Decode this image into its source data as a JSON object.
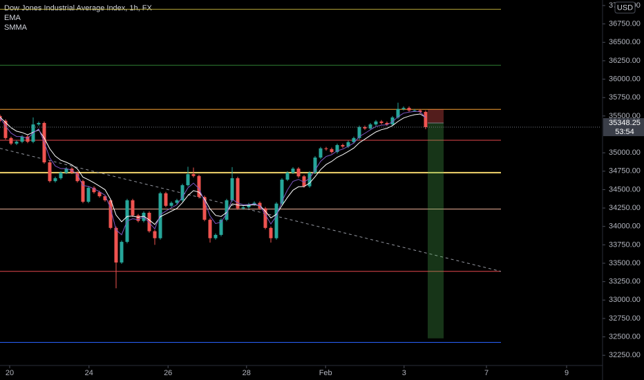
{
  "chart_data": {
    "type": "candlestick",
    "title": "Dow Jones Industrial Average Index, 1h, FX",
    "currency": "USD",
    "countdown": "53:54",
    "up_color": "#26a69a",
    "down_color": "#ef5350",
    "xlim": [
      0,
      108.75
    ],
    "xticks": [
      {
        "value": 1.75,
        "label": "20"
      },
      {
        "value": 16.1,
        "label": "24"
      },
      {
        "value": 30.4,
        "label": "26"
      },
      {
        "value": 44.6,
        "label": "28"
      },
      {
        "value": 58.9,
        "label": "Feb"
      },
      {
        "value": 73.1,
        "label": "3"
      },
      {
        "value": 88,
        "label": "7"
      },
      {
        "value": 102.5,
        "label": "9"
      }
    ],
    "ylim": [
      32130,
      37075
    ],
    "yticks": [
      {
        "value": 37000,
        "label": "37000.00"
      },
      {
        "value": 36750,
        "label": "36750.00"
      },
      {
        "value": 36500,
        "label": "36500.00"
      },
      {
        "value": 36250,
        "label": "36250.00"
      },
      {
        "value": 36000,
        "label": "36000.00"
      },
      {
        "value": 35750,
        "label": "35750.00"
      },
      {
        "value": 35500,
        "label": "35500.00"
      },
      {
        "value": 35000,
        "label": "35000.00"
      },
      {
        "value": 34750,
        "label": "34750.00"
      },
      {
        "value": 34500,
        "label": "34500.00"
      },
      {
        "value": 34250,
        "label": "34250.00"
      },
      {
        "value": 34000,
        "label": "34000.00"
      },
      {
        "value": 33750,
        "label": "33750.00"
      },
      {
        "value": 33500,
        "label": "33500.00"
      },
      {
        "value": 33250,
        "label": "33250.00"
      },
      {
        "value": 33000,
        "label": "33000.00"
      },
      {
        "value": 32750,
        "label": "32750.00"
      },
      {
        "value": 32500,
        "label": "32500.00"
      },
      {
        "value": 32250,
        "label": "32250.00"
      }
    ],
    "x": [
      0,
      1,
      2,
      3,
      4,
      5,
      6,
      7,
      8,
      9,
      10,
      11,
      12,
      13,
      14,
      15,
      16,
      17,
      18,
      19,
      20,
      21,
      22,
      23,
      24,
      25,
      26,
      27,
      28,
      29,
      30,
      31,
      32,
      33,
      34,
      35,
      36,
      37,
      38,
      39,
      40,
      41,
      42,
      43,
      44,
      45,
      46,
      47,
      48,
      49,
      50,
      51,
      52,
      53,
      54,
      55,
      56,
      57,
      58,
      59,
      60,
      61,
      62,
      63,
      64,
      65,
      66,
      67,
      68,
      69,
      70,
      71,
      72,
      73,
      74,
      75,
      76,
      77
    ],
    "open": [
      35500,
      35435,
      35200,
      35125,
      35150,
      35220,
      35150,
      35385,
      35405,
      34870,
      34615,
      34655,
      34730,
      34785,
      34730,
      34615,
      34335,
      34525,
      34465,
      34410,
      34355,
      33980,
      33510,
      33790,
      34355,
      34150,
      34075,
      34185,
      33935,
      33840,
      34450,
      34280,
      34320,
      34355,
      34560,
      34710,
      34685,
      34400,
      34090,
      33840,
      33885,
      34090,
      34355,
      34655,
      34245,
      34260,
      34300,
      34320,
      34245,
      33980,
      33840,
      34310,
      34635,
      34730,
      34785,
      34680,
      34545,
      34730,
      34935,
      35060,
      35050,
      35010,
      35105,
      35085,
      35145,
      35200,
      35350,
      35330,
      35385,
      35425,
      35405,
      35385,
      35480,
      35595,
      35610,
      35575,
      35575,
      35555
    ],
    "high": [
      35520,
      35455,
      35220,
      35170,
      35240,
      35240,
      35480,
      35425,
      35425,
      34890,
      34675,
      34750,
      34805,
      34805,
      34750,
      34635,
      34545,
      34545,
      34485,
      34430,
      34375,
      34000,
      33810,
      34375,
      34375,
      34170,
      34205,
      34205,
      33955,
      34470,
      34470,
      34340,
      34375,
      34580,
      34810,
      34800,
      34705,
      34420,
      34110,
      33905,
      34110,
      34375,
      34805,
      34675,
      34280,
      34320,
      34340,
      34340,
      34265,
      34000,
      34330,
      34655,
      34750,
      34805,
      34805,
      34700,
      34750,
      34955,
      35080,
      35080,
      35070,
      35125,
      35125,
      35165,
      35220,
      35370,
      35370,
      35405,
      35445,
      35445,
      35425,
      35500,
      35680,
      35630,
      35630,
      35595,
      35595,
      35575
    ],
    "low": [
      35415,
      35180,
      35105,
      35105,
      35130,
      35130,
      35130,
      35365,
      34850,
      34595,
      34595,
      34635,
      34710,
      34710,
      34595,
      34315,
      34315,
      34445,
      34390,
      34335,
      33960,
      33160,
      33490,
      33770,
      34130,
      34055,
      34055,
      33915,
      33750,
      33820,
      34260,
      34260,
      34300,
      34335,
      34540,
      34665,
      34380,
      34070,
      33780,
      33820,
      33865,
      34070,
      34335,
      34225,
      34225,
      34240,
      34280,
      34225,
      33960,
      33780,
      33820,
      34290,
      34615,
      34710,
      34660,
      34525,
      34525,
      34710,
      34915,
      35030,
      34990,
      34990,
      35065,
      35065,
      35125,
      35180,
      35310,
      35310,
      35365,
      35385,
      35365,
      35365,
      35460,
      35575,
      35555,
      35555,
      35535,
      35320
    ],
    "close": [
      35435,
      35200,
      35125,
      35150,
      35220,
      35150,
      35385,
      35405,
      34870,
      34615,
      34655,
      34730,
      34785,
      34730,
      34615,
      34335,
      34525,
      34465,
      34410,
      34355,
      33980,
      33510,
      33790,
      34355,
      34150,
      34075,
      34185,
      33935,
      33840,
      34450,
      34280,
      34320,
      34355,
      34560,
      34710,
      34685,
      34400,
      34090,
      33840,
      33885,
      34090,
      34355,
      34655,
      34245,
      34260,
      34300,
      34320,
      34245,
      33980,
      33840,
      34310,
      34635,
      34730,
      34785,
      34680,
      34545,
      34730,
      34935,
      35060,
      35050,
      35010,
      35105,
      35085,
      35145,
      35200,
      35350,
      35330,
      35385,
      35425,
      35405,
      35385,
      35480,
      35595,
      35610,
      35575,
      35575,
      35555,
      35348.25
    ],
    "series": [
      {
        "name": "EMA",
        "color": "#ffffff",
        "values": [
          35484,
          35413,
          35341,
          35293,
          35275,
          35244,
          35279,
          35311,
          35201,
          35055,
          34955,
          34899,
          34871,
          34836,
          34781,
          34670,
          34634,
          34592,
          34547,
          34499,
          34369,
          34154,
          34063,
          34136,
          34140,
          34124,
          34139,
          34088,
          34026,
          34132,
          34169,
          34207,
          34244,
          34323,
          34420,
          34486,
          34465,
          34371,
          34238,
          34150,
          34135,
          34190,
          34306,
          34291,
          34283,
          34287,
          34295,
          34283,
          34207,
          34115,
          34164,
          34282,
          34394,
          34492,
          34539,
          34541,
          34588,
          34675,
          34771,
          34841,
          34883,
          34939,
          34975,
          35018,
          35064,
          35136,
          35185,
          35235,
          35283,
          35314,
          35332,
          35369,
          35426,
          35472,
          35498,
          35517,
          35527,
          35482
        ]
      },
      {
        "name": "SMMA",
        "color": "#7e57c2",
        "values": [
          35474,
          35364,
          35268,
          35221,
          35221,
          35193,
          35270,
          35324,
          35142,
          34931,
          34821,
          34785,
          34785,
          34763,
          34704,
          34556,
          34544,
          34512,
          34471,
          34425,
          34247,
          33952,
          33887,
          34074,
          34104,
          34092,
          34129,
          34051,
          33967,
          34160,
          34208,
          34253,
          34294,
          34400,
          34524,
          34588,
          34513,
          34344,
          34142,
          34039,
          34059,
          34177,
          34368,
          34319,
          34295,
          34297,
          34306,
          34282,
          34161,
          34033,
          34144,
          34340,
          34496,
          34612,
          34639,
          34601,
          34653,
          34766,
          34884,
          34950,
          34974,
          35026,
          35050,
          35088,
          35133,
          35220,
          35264,
          35312,
          35357,
          35376,
          35380,
          35420,
          35490,
          35538,
          35553,
          35562,
          35559,
          35475
        ]
      }
    ],
    "levels": [
      {
        "price": 36950,
        "color": "#b8a83a",
        "width": 1
      },
      {
        "price": 36190,
        "color": "#2e7d32",
        "width": 1
      },
      {
        "price": 35590,
        "color": "#f7a233",
        "width": 1
      },
      {
        "price": 35170,
        "color": "#e5484d",
        "width": 1
      },
      {
        "price": 34730,
        "color": "#f5d76e",
        "width": 2
      },
      {
        "price": 34235,
        "color": "#f3b49b",
        "width": 1
      },
      {
        "price": 33390,
        "color": "#e5484d",
        "width": 1
      },
      {
        "price": 32425,
        "color": "#2962ff",
        "width": 1
      }
    ],
    "trendline": {
      "x": [
        0,
        90.6
      ],
      "y": [
        35060,
        33390
      ],
      "color": "#9598a1"
    },
    "position": {
      "entry": 35405,
      "stop": 35590,
      "target": 32480
    }
  }
}
